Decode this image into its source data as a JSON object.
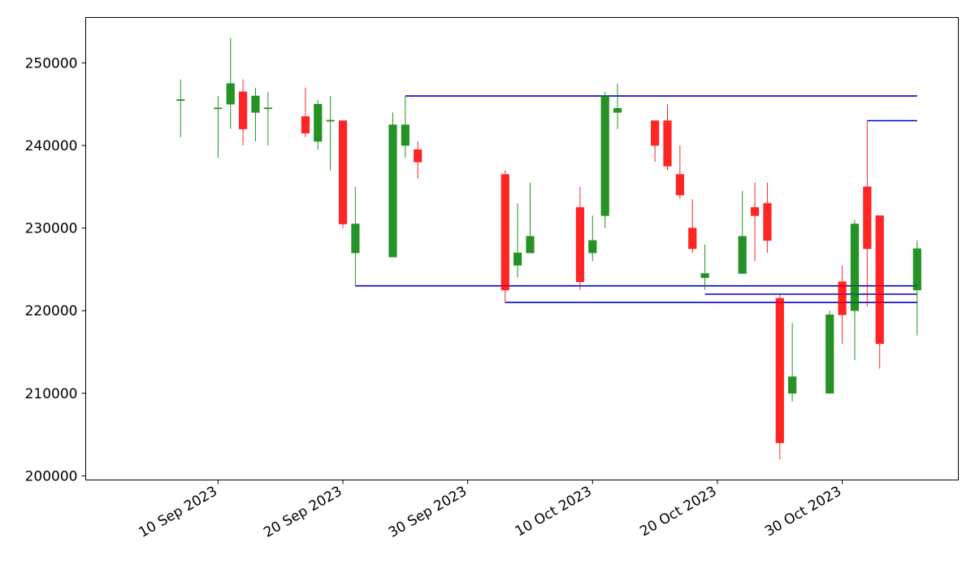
{
  "chart_data": {
    "type": "candlestick",
    "title": "",
    "xlabel": "",
    "ylabel": "",
    "grid": false,
    "legend": "none",
    "x_range": [
      "2023-09-03",
      "2023-11-05"
    ],
    "ylim": [
      199500,
      255500
    ],
    "y_ticks": [
      200000,
      210000,
      220000,
      230000,
      240000,
      250000
    ],
    "x_ticks": [
      {
        "date": "2023-09-10",
        "label": "10 Sep 2023"
      },
      {
        "date": "2023-09-20",
        "label": "20 Sep 2023"
      },
      {
        "date": "2023-09-30",
        "label": "30 Sep 2023"
      },
      {
        "date": "2023-10-10",
        "label": "10 Oct 2023"
      },
      {
        "date": "2023-10-20",
        "label": "20 Oct 2023"
      },
      {
        "date": "2023-10-30",
        "label": "30 Oct 2023"
      }
    ],
    "colors": {
      "up": "#008000",
      "down": "#ff0000",
      "level_line": "#0000cc",
      "axis": "#000000"
    },
    "candles": [
      {
        "date": "2023-09-07",
        "open": 245500,
        "high": 248000,
        "low": 241000,
        "close": 245500
      },
      {
        "date": "2023-09-10",
        "open": 244500,
        "high": 246000,
        "low": 238500,
        "close": 244500
      },
      {
        "date": "2023-09-11",
        "open": 245000,
        "high": 253000,
        "low": 242000,
        "close": 247500
      },
      {
        "date": "2023-09-12",
        "open": 246500,
        "high": 248000,
        "low": 240000,
        "close": 242000
      },
      {
        "date": "2023-09-13",
        "open": 244000,
        "high": 247000,
        "low": 240500,
        "close": 246000
      },
      {
        "date": "2023-09-14",
        "open": 244500,
        "high": 246500,
        "low": 240000,
        "close": 244500
      },
      {
        "date": "2023-09-17",
        "open": 243500,
        "high": 247000,
        "low": 241000,
        "close": 241500
      },
      {
        "date": "2023-09-18",
        "open": 240500,
        "high": 245500,
        "low": 239500,
        "close": 245000
      },
      {
        "date": "2023-09-19",
        "open": 243000,
        "high": 246000,
        "low": 237000,
        "close": 243000
      },
      {
        "date": "2023-09-20",
        "open": 243000,
        "high": 243000,
        "low": 230000,
        "close": 230500
      },
      {
        "date": "2023-09-21",
        "open": 227000,
        "high": 235000,
        "low": 223000,
        "close": 230500
      },
      {
        "date": "2023-09-24",
        "open": 226500,
        "high": 244000,
        "low": 226500,
        "close": 242500
      },
      {
        "date": "2023-09-25",
        "open": 240000,
        "high": 246000,
        "low": 238500,
        "close": 242500
      },
      {
        "date": "2023-09-26",
        "open": 239500,
        "high": 240500,
        "low": 236000,
        "close": 238000
      },
      {
        "date": "2023-10-03",
        "open": 236500,
        "high": 237000,
        "low": 221000,
        "close": 222500
      },
      {
        "date": "2023-10-04",
        "open": 225500,
        "high": 233000,
        "low": 224000,
        "close": 227000
      },
      {
        "date": "2023-10-05",
        "open": 227000,
        "high": 235500,
        "low": 227000,
        "close": 229000
      },
      {
        "date": "2023-10-09",
        "open": 232500,
        "high": 235000,
        "low": 222500,
        "close": 223500
      },
      {
        "date": "2023-10-10",
        "open": 227000,
        "high": 231500,
        "low": 226000,
        "close": 228500
      },
      {
        "date": "2023-10-11",
        "open": 231500,
        "high": 246500,
        "low": 230000,
        "close": 246000
      },
      {
        "date": "2023-10-12",
        "open": 244000,
        "high": 247500,
        "low": 242000,
        "close": 244500
      },
      {
        "date": "2023-10-15",
        "open": 243000,
        "high": 243000,
        "low": 238000,
        "close": 240000
      },
      {
        "date": "2023-10-16",
        "open": 243000,
        "high": 245000,
        "low": 237000,
        "close": 237500
      },
      {
        "date": "2023-10-17",
        "open": 236500,
        "high": 240000,
        "low": 233500,
        "close": 234000
      },
      {
        "date": "2023-10-18",
        "open": 230000,
        "high": 233500,
        "low": 227000,
        "close": 227500
      },
      {
        "date": "2023-10-19",
        "open": 224000,
        "high": 228000,
        "low": 222500,
        "close": 224500
      },
      {
        "date": "2023-10-22",
        "open": 224500,
        "high": 234500,
        "low": 224500,
        "close": 229000
      },
      {
        "date": "2023-10-23",
        "open": 232500,
        "high": 235500,
        "low": 226000,
        "close": 231500
      },
      {
        "date": "2023-10-24",
        "open": 233000,
        "high": 235500,
        "low": 227000,
        "close": 228500
      },
      {
        "date": "2023-10-25",
        "open": 221500,
        "high": 222000,
        "low": 202000,
        "close": 204000
      },
      {
        "date": "2023-10-26",
        "open": 210000,
        "high": 218500,
        "low": 209000,
        "close": 212000
      },
      {
        "date": "2023-10-29",
        "open": 210000,
        "high": 220000,
        "low": 210000,
        "close": 219500
      },
      {
        "date": "2023-10-30",
        "open": 223500,
        "high": 225500,
        "low": 216000,
        "close": 219500
      },
      {
        "date": "2023-10-31",
        "open": 220000,
        "high": 231000,
        "low": 214000,
        "close": 230500
      },
      {
        "date": "2023-11-01",
        "open": 235000,
        "high": 243000,
        "low": 220500,
        "close": 227500
      },
      {
        "date": "2023-11-02",
        "open": 231500,
        "high": 231500,
        "low": 213000,
        "close": 216000
      },
      {
        "date": "2023-11-05",
        "open": 222500,
        "high": 228500,
        "low": 217000,
        "close": 227500
      }
    ],
    "levels": [
      {
        "price": 246000,
        "from": "2023-09-25",
        "to": "2023-11-05"
      },
      {
        "price": 243000,
        "from": "2023-11-01",
        "to": "2023-11-05"
      },
      {
        "price": 223000,
        "from": "2023-09-21",
        "to": "2023-11-05"
      },
      {
        "price": 222000,
        "from": "2023-10-19",
        "to": "2023-11-05"
      },
      {
        "price": 221000,
        "from": "2023-10-03",
        "to": "2023-11-05"
      }
    ]
  }
}
